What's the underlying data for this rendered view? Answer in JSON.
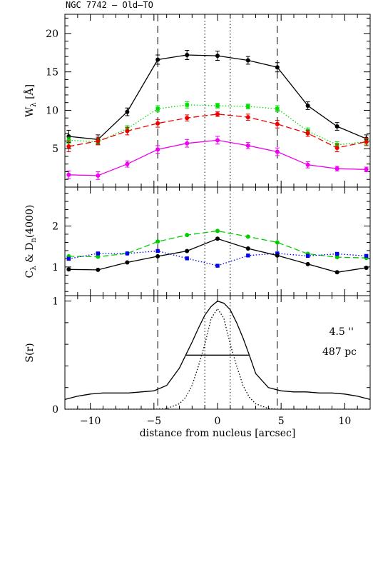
{
  "title": "NGC 7742   –   Old–TO",
  "x_axis": {
    "label": "distance from nucleus [arcsec]",
    "range": [
      -12,
      12
    ],
    "tick_labels": [
      "−10",
      "−5",
      "0",
      "5",
      "10"
    ],
    "tick_values": [
      -10,
      -5,
      0,
      5,
      10
    ]
  },
  "chart_data": [
    {
      "type": "line",
      "panel": "top",
      "ylabel": "Wλ [Å]",
      "ylim": [
        0,
        22.5
      ],
      "y_ticks": [
        5,
        10,
        15,
        20
      ],
      "y_tick_labels": [
        "5",
        "10",
        "15",
        "20"
      ],
      "x": [
        -11.7,
        -9.4,
        -7.1,
        -4.7,
        -2.4,
        0,
        2.4,
        4.7,
        7.1,
        9.4,
        11.7
      ],
      "series": [
        {
          "color": "#000000",
          "dash": "solid",
          "marker": "circle",
          "values": [
            6.6,
            6.2,
            9.8,
            16.6,
            17.2,
            17.1,
            16.5,
            15.6,
            10.6,
            7.9,
            6.3
          ],
          "errors": [
            0.8,
            0.6,
            0.5,
            0.6,
            0.6,
            0.6,
            0.5,
            0.6,
            0.5,
            0.5,
            0.5
          ]
        },
        {
          "color": "#00dd00",
          "dash": "dotted",
          "marker": "square",
          "values": [
            6.1,
            5.9,
            7.6,
            10.2,
            10.7,
            10.6,
            10.5,
            10.2,
            7.3,
            5.5,
            5.9
          ],
          "errors": [
            0.4,
            0.4,
            0.4,
            0.4,
            0.4,
            0.3,
            0.3,
            0.4,
            0.4,
            0.4,
            0.4
          ]
        },
        {
          "color": "#ee0000",
          "dash": "dashed",
          "marker": "circle",
          "values": [
            5.3,
            6.0,
            7.3,
            8.3,
            9.0,
            9.5,
            9.1,
            8.2,
            7.0,
            5.1,
            5.9
          ],
          "errors": [
            0.7,
            0.5,
            0.5,
            0.5,
            0.4,
            0.3,
            0.4,
            0.5,
            0.4,
            0.5,
            0.5
          ]
        },
        {
          "color": "#ee00ee",
          "dash": "solid",
          "marker": "circle",
          "values": [
            1.6,
            1.5,
            3.0,
            4.9,
            5.7,
            6.1,
            5.4,
            4.6,
            2.9,
            2.4,
            2.3
          ],
          "errors": [
            0.5,
            0.5,
            0.4,
            0.5,
            0.5,
            0.5,
            0.4,
            0.5,
            0.4,
            0.3,
            0.3
          ]
        }
      ]
    },
    {
      "type": "line",
      "panel": "middle",
      "ylabel": "Cλ & Dn(4000)",
      "ylim": [
        0.3,
        2.95
      ],
      "y_ticks": [
        1,
        2
      ],
      "y_tick_labels": [
        "1",
        "2"
      ],
      "x": [
        -11.7,
        -9.4,
        -7.1,
        -4.7,
        -2.4,
        0,
        2.4,
        4.7,
        7.1,
        9.4,
        11.7
      ],
      "series": [
        {
          "color": "#00cc00",
          "dash": "dashed",
          "marker": "circle",
          "values": [
            1.26,
            1.25,
            1.33,
            1.62,
            1.78,
            1.88,
            1.74,
            1.6,
            1.32,
            1.24,
            1.22
          ]
        },
        {
          "color": "#0000ee",
          "dash": "dotted",
          "marker": "square",
          "values": [
            1.2,
            1.33,
            1.33,
            1.39,
            1.21,
            1.03,
            1.28,
            1.33,
            1.27,
            1.32,
            1.27
          ]
        },
        {
          "color": "#000000",
          "dash": "solid",
          "marker": "circle",
          "values": [
            0.94,
            0.93,
            1.11,
            1.26,
            1.39,
            1.69,
            1.45,
            1.28,
            1.07,
            0.87,
            0.98
          ]
        }
      ]
    },
    {
      "type": "line",
      "panel": "bottom",
      "ylabel": "S(r)",
      "ylim": [
        0,
        1.05
      ],
      "y_ticks": [
        0,
        1
      ],
      "y_tick_labels": [
        "0",
        "1"
      ],
      "series": [
        {
          "color": "#000000",
          "dash": "solid",
          "x": [
            -12,
            -11,
            -10,
            -9,
            -8,
            -7,
            -6,
            -5,
            -4,
            -3,
            -2.5,
            -2,
            -1.5,
            -1,
            -0.5,
            0,
            0.5,
            1,
            1.5,
            2,
            2.5,
            3,
            4,
            5,
            6,
            7,
            8,
            9,
            10,
            11,
            12
          ],
          "values": [
            0.09,
            0.12,
            0.14,
            0.15,
            0.15,
            0.15,
            0.16,
            0.17,
            0.22,
            0.38,
            0.5,
            0.62,
            0.75,
            0.87,
            0.95,
            1.0,
            0.98,
            0.92,
            0.8,
            0.66,
            0.5,
            0.33,
            0.2,
            0.17,
            0.16,
            0.16,
            0.15,
            0.15,
            0.14,
            0.12,
            0.09
          ]
        },
        {
          "color": "#000000",
          "dash": "dotted",
          "x": [
            -12,
            -5,
            -4,
            -3,
            -2.5,
            -2,
            -1.5,
            -1,
            -0.5,
            0,
            0.5,
            1,
            1.5,
            2,
            2.5,
            3,
            4,
            5,
            12
          ],
          "values": [
            0,
            0,
            0.005,
            0.05,
            0.11,
            0.22,
            0.4,
            0.6,
            0.84,
            0.93,
            0.84,
            0.6,
            0.4,
            0.22,
            0.11,
            0.05,
            0.005,
            0,
            0
          ]
        },
        {
          "color": "#000000",
          "dash": "solid",
          "x": [
            -2.5,
            2.5
          ],
          "values": [
            0.5,
            0.5
          ]
        }
      ],
      "annotations": [
        "4.5 ''",
        "487 pc"
      ]
    }
  ],
  "vertical_lines": {
    "dashed_x": [
      -4.7,
      4.7
    ],
    "dotted_x": [
      -1.0,
      1.0
    ]
  }
}
